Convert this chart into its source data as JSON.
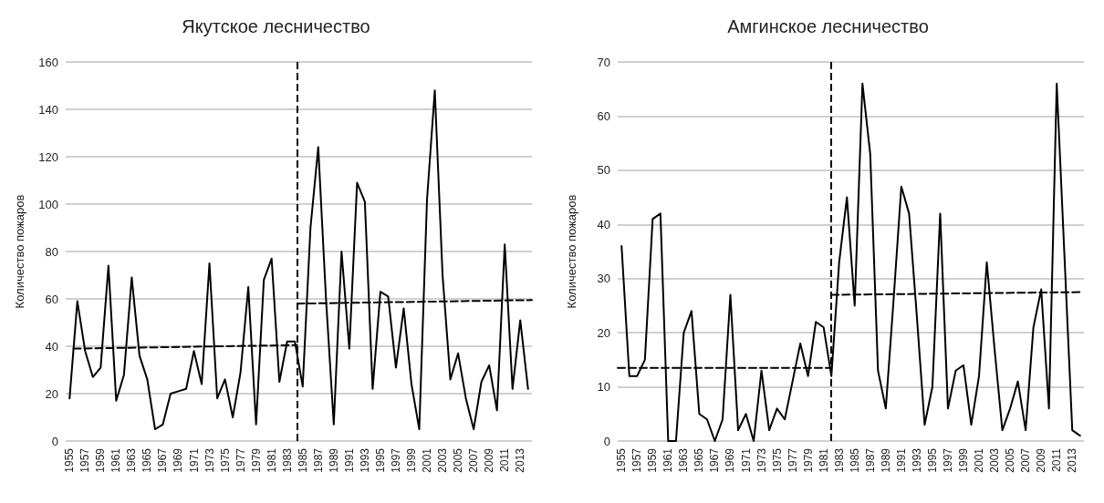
{
  "chart_data": [
    {
      "type": "line",
      "title": "Якутское лесничество",
      "ylabel": "Количество пожаров",
      "xlim": [
        1954.5,
        2014.5
      ],
      "xticks": [
        1955,
        1957,
        1959,
        1961,
        1963,
        1965,
        1967,
        1969,
        1971,
        1973,
        1975,
        1977,
        1979,
        1981,
        1983,
        1985,
        1987,
        1989,
        1991,
        1993,
        1995,
        1997,
        1999,
        2001,
        2003,
        2005,
        2007,
        2009,
        2011,
        2013
      ],
      "ylim": [
        0,
        160
      ],
      "yticks": [
        0,
        20,
        40,
        60,
        80,
        100,
        120,
        140,
        160
      ],
      "grid": "y",
      "marker": "none",
      "line_style": "solid",
      "x": [
        1955,
        1956,
        1957,
        1958,
        1959,
        1960,
        1961,
        1962,
        1963,
        1964,
        1965,
        1966,
        1967,
        1968,
        1969,
        1970,
        1971,
        1972,
        1973,
        1974,
        1975,
        1976,
        1977,
        1978,
        1979,
        1980,
        1981,
        1982,
        1983,
        1984,
        1985,
        1986,
        1987,
        1988,
        1989,
        1990,
        1991,
        1992,
        1993,
        1994,
        1995,
        1996,
        1997,
        1998,
        1999,
        2000,
        2001,
        2002,
        2003,
        2004,
        2005,
        2006,
        2007,
        2008,
        2009,
        2010,
        2011,
        2012,
        2013,
        2014
      ],
      "series": [
        {
          "color": "#000000",
          "values": [
            18,
            59,
            38,
            27,
            31,
            74,
            17,
            28,
            69,
            36,
            26,
            5,
            7,
            20,
            21,
            22,
            38,
            24,
            75,
            18,
            26,
            10,
            29,
            65,
            7,
            68,
            77,
            25,
            42,
            42,
            23,
            90,
            124,
            60,
            7,
            80,
            39,
            109,
            101,
            22,
            63,
            61,
            31,
            56,
            24,
            5,
            102,
            148,
            70,
            26,
            37,
            18,
            5,
            25,
            32,
            13,
            83,
            22,
            51,
            22
          ]
        },
        {
          "color": "#000000",
          "line_style": "dashed",
          "x": [
            1955.5,
            1984.3
          ],
          "values": [
            39,
            40.5
          ]
        },
        {
          "color": "#000000",
          "line_style": "dashed",
          "x": [
            1984.3,
            2014.5
          ],
          "values": [
            58,
            59.5
          ]
        }
      ],
      "ref_lines": [
        {
          "axis": "x",
          "value": 1984.3,
          "color": "#000000",
          "line_style": "dashed"
        }
      ]
    },
    {
      "type": "line",
      "title": "Амгинское лесничество",
      "ylabel": "Количество пожаров",
      "xlim": [
        1954.5,
        2014.5
      ],
      "xticks": [
        1955,
        1957,
        1959,
        1961,
        1963,
        1965,
        1967,
        1969,
        1971,
        1973,
        1975,
        1977,
        1979,
        1981,
        1983,
        1985,
        1987,
        1989,
        1991,
        1993,
        1995,
        1997,
        1999,
        2001,
        2003,
        2005,
        2007,
        2009,
        2011,
        2013
      ],
      "ylim": [
        0,
        70
      ],
      "yticks": [
        0,
        10,
        20,
        30,
        40,
        50,
        60,
        70
      ],
      "grid": "y",
      "marker": "none",
      "line_style": "solid",
      "x": [
        1955,
        1956,
        1957,
        1958,
        1959,
        1960,
        1961,
        1962,
        1963,
        1964,
        1965,
        1966,
        1967,
        1968,
        1969,
        1970,
        1971,
        1972,
        1973,
        1974,
        1975,
        1976,
        1977,
        1978,
        1979,
        1980,
        1981,
        1982,
        1983,
        1984,
        1985,
        1986,
        1987,
        1988,
        1989,
        1990,
        1991,
        1992,
        1993,
        1994,
        1995,
        1996,
        1997,
        1998,
        1999,
        2000,
        2001,
        2002,
        2003,
        2004,
        2005,
        2006,
        2007,
        2008,
        2009,
        2010,
        2011,
        2012,
        2013,
        2014
      ],
      "series": [
        {
          "color": "#000000",
          "values": [
            36,
            12,
            12,
            15,
            41,
            42,
            0,
            0,
            20,
            24,
            5,
            4,
            0,
            4,
            27,
            2,
            5,
            0,
            13,
            2,
            6,
            4,
            11,
            18,
            12,
            22,
            21,
            12,
            33,
            45,
            25,
            66,
            53,
            13,
            6,
            26,
            47,
            42,
            23,
            3,
            10,
            42,
            6,
            13,
            14,
            3,
            12,
            33,
            17,
            2,
            6,
            11,
            2,
            21,
            28,
            6,
            66,
            34,
            2,
            1
          ]
        },
        {
          "color": "#000000",
          "line_style": "dashed",
          "x": [
            1954.5,
            1982
          ],
          "values": [
            13.5,
            13.5
          ]
        },
        {
          "color": "#000000",
          "line_style": "dashed",
          "x": [
            1982,
            2014
          ],
          "values": [
            27,
            27.5
          ]
        }
      ],
      "ref_lines": [
        {
          "axis": "x",
          "value": 1982,
          "color": "#000000",
          "line_style": "dashed"
        }
      ]
    }
  ]
}
